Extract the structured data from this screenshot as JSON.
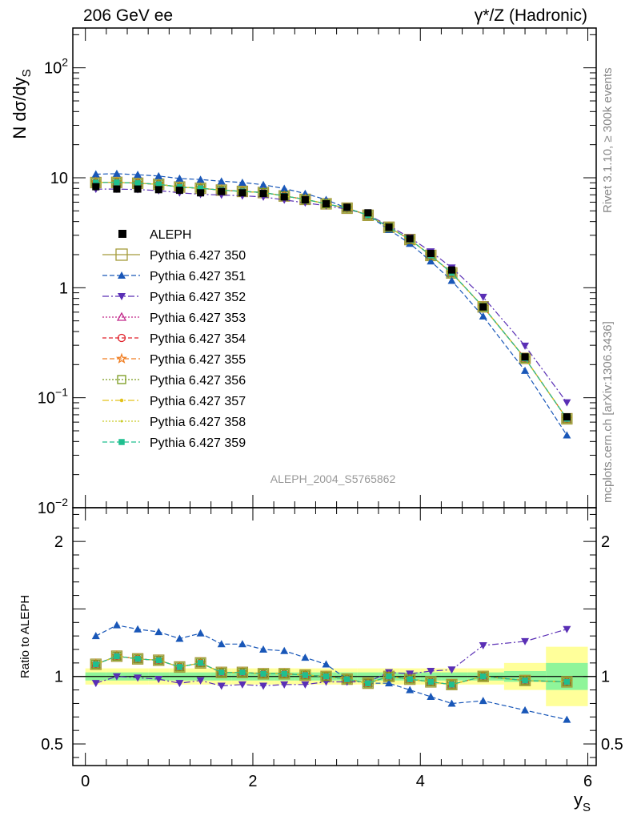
{
  "header": {
    "left": "206 GeV ee",
    "right": "γ*/Z (Hadronic)"
  },
  "side_text": {
    "rivet": "Rivet 3.1.10, ≥ 300k events",
    "mcplots": "mcplots.cern.ch [arXiv:1306.3436]"
  },
  "chart_data": {
    "type": "scatter",
    "title": "206 GeV ee",
    "analysis_label": "ALEPH_2004_S5765862",
    "xlabel": "y_S",
    "ylabel": "N dσ/dy_S",
    "ratio_ylabel": "Ratio to ALEPH",
    "xlim": [
      -0.15,
      6.1
    ],
    "ylim": [
      0.01,
      230
    ],
    "ratio_ylim": [
      0.34,
      2.25
    ],
    "yscale": "log",
    "x_ticks": [
      {
        "v": 0,
        "label": "0"
      },
      {
        "v": 2,
        "label": "2"
      },
      {
        "v": 4,
        "label": "4"
      },
      {
        "v": 6,
        "label": "6"
      }
    ],
    "y_ticks": [
      {
        "v": 0.01,
        "base": "10",
        "exp": "−2"
      },
      {
        "v": 0.1,
        "base": "10",
        "exp": "−1"
      },
      {
        "v": 1,
        "base": "1",
        "exp": ""
      },
      {
        "v": 10,
        "base": "10",
        "exp": ""
      },
      {
        "v": 100,
        "base": "10",
        "exp": "2"
      }
    ],
    "ratio_y_ticks": [
      {
        "v": 0.5,
        "label": "0.5"
      },
      {
        "v": 1,
        "label": "1"
      },
      {
        "v": 2,
        "label": "2"
      }
    ],
    "x": [
      0.125,
      0.375,
      0.625,
      0.875,
      1.125,
      1.375,
      1.625,
      1.875,
      2.125,
      2.375,
      2.625,
      2.875,
      3.125,
      3.375,
      3.625,
      3.875,
      4.125,
      4.375,
      4.75,
      5.25,
      5.75
    ],
    "reference": {
      "name": "ALEPH",
      "values": [
        8.3,
        7.9,
        7.9,
        7.8,
        7.7,
        7.3,
        7.5,
        7.3,
        7.2,
        6.7,
        6.3,
        5.8,
        5.4,
        4.8,
        3.55,
        2.8,
        2.05,
        1.45,
        0.67,
        0.235,
        0.067
      ],
      "band1": [
        0.03,
        0.03,
        0.03,
        0.03,
        0.03,
        0.03,
        0.03,
        0.03,
        0.03,
        0.03,
        0.03,
        0.03,
        0.03,
        0.03,
        0.03,
        0.03,
        0.03,
        0.03,
        0.03,
        0.04,
        0.1
      ],
      "band2": [
        0.06,
        0.06,
        0.06,
        0.06,
        0.06,
        0.06,
        0.06,
        0.06,
        0.06,
        0.06,
        0.06,
        0.06,
        0.06,
        0.06,
        0.06,
        0.06,
        0.06,
        0.06,
        0.06,
        0.1,
        0.22
      ]
    },
    "series": [
      {
        "name": "Pythia 6.427 350",
        "color": "#a59b3a",
        "marker": "square-open",
        "dash": "",
        "ratio": [
          1.09,
          1.15,
          1.13,
          1.12,
          1.07,
          1.1,
          1.03,
          1.03,
          1.02,
          1.02,
          1.01,
          1.0,
          0.98,
          0.95,
          1.0,
          0.98,
          0.96,
          0.94,
          1.0,
          0.97,
          0.96
        ]
      },
      {
        "name": "Pythia 6.427 351",
        "color": "#1957b8",
        "marker": "triangle-up",
        "dash": "6,3",
        "ratio": [
          1.3,
          1.38,
          1.35,
          1.33,
          1.28,
          1.32,
          1.24,
          1.24,
          1.2,
          1.19,
          1.14,
          1.09,
          0.98,
          0.95,
          0.95,
          0.9,
          0.85,
          0.8,
          0.82,
          0.75,
          0.68
        ]
      },
      {
        "name": "Pythia 6.427 352",
        "color": "#5a2fb5",
        "marker": "triangle-down",
        "dash": "8,3,2,3",
        "ratio": [
          0.95,
          1.0,
          0.99,
          0.98,
          0.95,
          0.97,
          0.93,
          0.94,
          0.93,
          0.94,
          0.94,
          0.96,
          0.96,
          0.96,
          1.03,
          1.02,
          1.04,
          1.05,
          1.23,
          1.26,
          1.35
        ]
      },
      {
        "name": "Pythia 6.427 353",
        "color": "#c2298b",
        "marker": "triangle-open",
        "dash": "2,2",
        "ratio": [
          1.09,
          1.15,
          1.13,
          1.12,
          1.07,
          1.1,
          1.03,
          1.03,
          1.02,
          1.02,
          1.01,
          1.0,
          0.98,
          0.95,
          1.0,
          0.98,
          0.96,
          0.94,
          1.0,
          0.97,
          0.96
        ]
      },
      {
        "name": "Pythia 6.427 354",
        "color": "#e0202a",
        "marker": "circle-open",
        "dash": "5,3",
        "ratio": [
          1.09,
          1.15,
          1.13,
          1.12,
          1.07,
          1.1,
          1.03,
          1.03,
          1.02,
          1.02,
          1.01,
          1.0,
          0.98,
          0.95,
          1.0,
          0.98,
          0.96,
          0.94,
          1.0,
          0.97,
          0.96
        ]
      },
      {
        "name": "Pythia 6.427 355",
        "color": "#f07e22",
        "marker": "star-open",
        "dash": "6,3",
        "ratio": [
          1.09,
          1.15,
          1.13,
          1.12,
          1.07,
          1.1,
          1.03,
          1.03,
          1.02,
          1.02,
          1.01,
          1.0,
          0.98,
          0.95,
          1.0,
          0.98,
          0.96,
          0.94,
          1.0,
          0.97,
          0.96
        ]
      },
      {
        "name": "Pythia 6.427 356",
        "color": "#7a9a1c",
        "marker": "square-open",
        "dash": "2,2",
        "ratio": [
          1.09,
          1.15,
          1.13,
          1.12,
          1.07,
          1.1,
          1.03,
          1.03,
          1.02,
          1.02,
          1.01,
          1.0,
          0.98,
          0.95,
          1.0,
          0.98,
          0.96,
          0.94,
          1.0,
          0.97,
          0.96
        ]
      },
      {
        "name": "Pythia 6.427 357",
        "color": "#e3c21a",
        "marker": "dot",
        "dash": "8,3,2,3",
        "ratio": [
          1.09,
          1.15,
          1.13,
          1.12,
          1.07,
          1.1,
          1.03,
          1.03,
          1.02,
          1.02,
          1.01,
          1.0,
          0.98,
          0.95,
          1.0,
          0.98,
          0.96,
          0.94,
          1.0,
          0.97,
          0.96
        ]
      },
      {
        "name": "Pythia 6.427 358",
        "color": "#c9cc2a",
        "marker": "dot-small",
        "dash": "2,2",
        "ratio": [
          1.09,
          1.15,
          1.13,
          1.12,
          1.07,
          1.1,
          1.03,
          1.03,
          1.02,
          1.02,
          1.01,
          1.0,
          0.98,
          0.95,
          1.0,
          0.98,
          0.96,
          0.94,
          1.0,
          0.97,
          0.96
        ]
      },
      {
        "name": "Pythia 6.427 359",
        "color": "#1fbf8f",
        "marker": "square-filled",
        "dash": "6,3",
        "ratio": [
          1.09,
          1.15,
          1.13,
          1.12,
          1.07,
          1.1,
          1.03,
          1.03,
          1.02,
          1.02,
          1.01,
          1.0,
          0.98,
          0.95,
          1.0,
          0.98,
          0.96,
          0.94,
          1.0,
          0.97,
          0.96
        ]
      }
    ]
  }
}
